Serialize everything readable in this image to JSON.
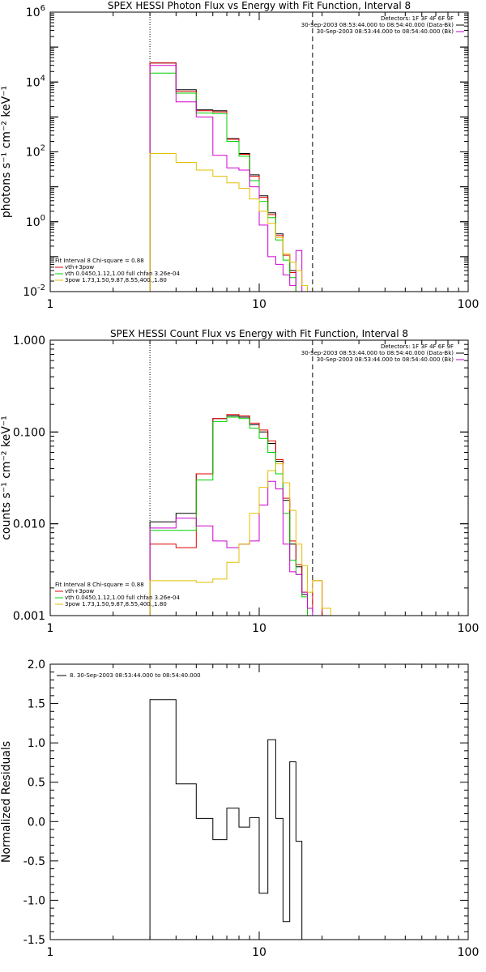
{
  "chart_data": [
    {
      "type": "line",
      "title": "SPEX HESSI Photon Flux vs Energy with Fit Function, Interval 8",
      "ylabel": "photons s⁻¹ cm⁻² keV⁻¹",
      "xlabel": "",
      "xscale": "log",
      "yscale": "log",
      "xlim": [
        1,
        100
      ],
      "ylim": [
        0.01,
        1000000
      ],
      "x_tick_labels": [
        {
          "v": 1,
          "t": "1"
        },
        {
          "v": 10,
          "t": "10"
        },
        {
          "v": 100,
          "t": "100"
        }
      ],
      "y_tick_labels": [
        {
          "v": 1000000,
          "t": "10",
          "e": "6"
        },
        {
          "v": 10000,
          "t": "10",
          "e": "4"
        },
        {
          "v": 100,
          "t": "10",
          "e": "2"
        },
        {
          "v": 1,
          "t": "10",
          "e": "0"
        },
        {
          "v": 0.01,
          "t": "10",
          "e": "-2"
        }
      ],
      "vlines": [
        {
          "x": 3.0,
          "style": "dotted"
        },
        {
          "x": 18.0,
          "style": "dashed"
        }
      ],
      "info_lines": [
        "Detectors: 1F 3F 4F 6F 9F",
        "30-Sep-2003 08:53:44.000 to 08:54:40.000 (Data-Bk)",
        "30-Sep-2003 08:53:44.000 to 08:54:40.000 (Bk)"
      ],
      "info_colors": [
        "",
        "#000000",
        "#d000d0"
      ],
      "fit_lines": [
        "Fit Interval 8   Chi-square = 0.88",
        "vth+3pow",
        "vth 0.0450,1.12,1.00  full chfan 3.26e-04",
        "3pow 1.73,1.50,9.87,8.55,400.,1.80"
      ],
      "fit_colors": [
        "",
        "#e00000",
        "#00d000",
        "#e0c000"
      ],
      "edges": [
        3.0,
        3.5,
        4.0,
        4.5,
        5.0,
        5.5,
        6.0,
        6.5,
        7.0,
        7.5,
        8.0,
        8.5,
        9.0,
        10.0,
        11.0,
        12.0,
        13.0,
        14.0,
        15.0,
        16.0,
        17.0,
        18.0,
        20.0,
        22.0
      ],
      "series": [
        {
          "color": "#000000",
          "values": [
            35000,
            35000,
            6000,
            6000,
            1600,
            1600,
            1500,
            1500,
            240,
            240,
            90,
            90,
            22,
            5.5,
            1.8,
            0.45,
            0.12,
            0.04,
            0.01,
            null,
            null,
            null,
            null
          ]
        },
        {
          "color": "#e00000",
          "values": [
            35000,
            35000,
            5400,
            5400,
            1500,
            1500,
            1400,
            1400,
            230,
            230,
            85,
            85,
            20,
            5.0,
            1.6,
            0.4,
            0.11,
            0.035,
            0.009,
            0.01,
            0.01,
            0.01,
            0.01
          ]
        },
        {
          "color": "#00d000",
          "values": [
            18000,
            18000,
            4800,
            4800,
            1300,
            1300,
            1250,
            1250,
            200,
            200,
            75,
            75,
            15,
            3.8,
            1.3,
            0.3,
            0.08,
            0.025,
            0.01,
            null,
            null,
            null,
            null
          ]
        },
        {
          "color": "#d000d0",
          "values": [
            30000,
            30000,
            2700,
            2700,
            1000,
            1000,
            80,
            80,
            35,
            35,
            30,
            30,
            10,
            0.8,
            0.1,
            0.06,
            0.03,
            0.015,
            0.15,
            null,
            null,
            null,
            null
          ]
        },
        {
          "color": "#e0c000",
          "values": [
            90,
            90,
            50,
            50,
            30,
            30,
            20,
            20,
            13,
            13,
            9,
            9,
            4.5,
            2.0,
            0.9,
            0.35,
            0.12,
            0.07,
            0.04,
            0.015,
            0.01,
            0.01,
            0.01
          ]
        }
      ]
    },
    {
      "type": "line",
      "title": "SPEX HESSI Count Flux vs Energy with Fit Function, Interval 8",
      "ylabel": "counts s⁻¹ cm⁻² keV⁻¹",
      "xlabel": "",
      "xscale": "log",
      "yscale": "log",
      "xlim": [
        1,
        100
      ],
      "ylim": [
        0.001,
        1.0
      ],
      "x_tick_labels": [
        {
          "v": 1,
          "t": "1"
        },
        {
          "v": 10,
          "t": "10"
        },
        {
          "v": 100,
          "t": "100"
        }
      ],
      "y_tick_labels": [
        {
          "v": 1.0,
          "t": "1.000"
        },
        {
          "v": 0.1,
          "t": "0.100"
        },
        {
          "v": 0.01,
          "t": "0.010"
        },
        {
          "v": 0.001,
          "t": "0.001"
        }
      ],
      "vlines": [
        {
          "x": 3.0,
          "style": "dotted"
        },
        {
          "x": 18.0,
          "style": "dashed"
        }
      ],
      "info_lines": [
        "Detectors: 1F 3F 4F 6F 9F",
        "30-Sep-2003 08:53:44.000 to 08:54:40.000 (Data-Bk)",
        "30-Sep-2003 08:53:44.000 to 08:54:40.000 (Bk)"
      ],
      "info_colors": [
        "",
        "#000000",
        "#d000d0"
      ],
      "fit_lines": [
        "Fit Interval 8   Chi-square = 0.88",
        "vth+3pow",
        "vth 0.0450,1.12,1.00  full chfan 3.26e-04",
        "3pow 1.73,1.50,9.87,8.55,400.,1.80"
      ],
      "fit_colors": [
        "",
        "#e00000",
        "#00d000",
        "#e0c000"
      ],
      "edges": [
        3.0,
        4.0,
        5.0,
        6.0,
        7.0,
        8.0,
        9.0,
        10.0,
        11.0,
        12.0,
        13.0,
        14.0,
        15.0,
        16.0,
        17.0,
        18.0,
        20.0,
        22.0
      ],
      "series": [
        {
          "color": "#000000",
          "values": [
            0.0105,
            0.013,
            0.035,
            0.14,
            0.15,
            0.145,
            0.12,
            0.1,
            0.075,
            0.048,
            0.018,
            0.006,
            0.0034,
            0.0017,
            0.001,
            null,
            null
          ]
        },
        {
          "color": "#e00000",
          "values": [
            0.006,
            0.0055,
            0.035,
            0.14,
            0.155,
            0.15,
            0.125,
            0.105,
            0.08,
            0.05,
            0.019,
            0.0065,
            0.0036,
            0.0018,
            0.0012,
            0.0024,
            0.001
          ]
        },
        {
          "color": "#00d000",
          "values": [
            0.0085,
            0.0085,
            0.03,
            0.13,
            0.145,
            0.14,
            0.11,
            0.085,
            0.06,
            0.035,
            0.013,
            0.004,
            0.0028,
            0.0016,
            0.001,
            null,
            null
          ]
        },
        {
          "color": "#d000d0",
          "values": [
            0.009,
            0.0115,
            0.0095,
            0.0065,
            0.0055,
            0.006,
            0.0065,
            0.016,
            0.029,
            0.024,
            0.006,
            0.003,
            0.0028,
            0.0018,
            0.0012,
            null,
            null
          ]
        },
        {
          "color": "#e0c000",
          "values": [
            0.0024,
            0.0024,
            0.0023,
            0.0025,
            0.0038,
            0.006,
            0.013,
            0.025,
            0.038,
            0.045,
            0.028,
            0.014,
            0.006,
            0.0035,
            0.0018,
            0.0024,
            0.0012
          ]
        }
      ]
    },
    {
      "type": "line",
      "title": "",
      "ylabel": "Normalized Residuals",
      "xlabel": "",
      "xscale": "log",
      "yscale": "linear",
      "xlim": [
        1,
        100
      ],
      "ylim": [
        -1.5,
        2.0
      ],
      "x_tick_labels": [
        {
          "v": 1,
          "t": "1"
        },
        {
          "v": 10,
          "t": "10"
        },
        {
          "v": 100,
          "t": "100"
        }
      ],
      "y_tick_labels": [
        {
          "v": 2.0,
          "t": "2.0"
        },
        {
          "v": 1.5,
          "t": "1.5"
        },
        {
          "v": 1.0,
          "t": "1.0"
        },
        {
          "v": 0.5,
          "t": "0.5"
        },
        {
          "v": 0.0,
          "t": "0.0"
        },
        {
          "v": -0.5,
          "t": "-0.5"
        },
        {
          "v": -1.0,
          "t": "-1.0"
        },
        {
          "v": -1.5,
          "t": "-1.5"
        }
      ],
      "vlines": [],
      "legend": "8. 30-Sep-2003 08:53:44.000 to 08:54:40.000",
      "edges": [
        3.0,
        4.0,
        5.0,
        6.0,
        7.0,
        8.0,
        9.0,
        10.0,
        11.0,
        12.0,
        13.0,
        14.0,
        15.0,
        16.0,
        17.0,
        18.0
      ],
      "series": [
        {
          "color": "#000000",
          "values": [
            1.55,
            0.48,
            0.04,
            -0.23,
            0.17,
            -0.07,
            0.05,
            -0.91,
            1.04,
            0.04,
            -1.27,
            0.76,
            -0.25
          ]
        }
      ]
    }
  ]
}
